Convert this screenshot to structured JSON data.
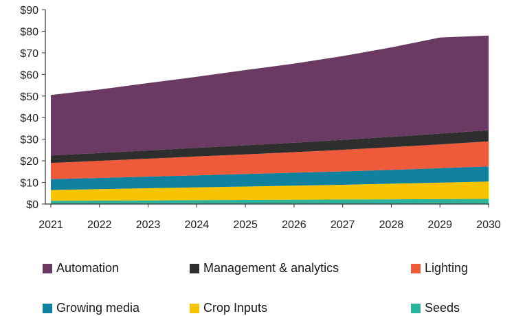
{
  "chart_data": {
    "type": "area",
    "stacked": true,
    "title": "",
    "xlabel": "",
    "ylabel": "",
    "x": [
      2021,
      2022,
      2023,
      2024,
      2025,
      2026,
      2027,
      2028,
      2029,
      2030
    ],
    "ylim": [
      0,
      90
    ],
    "yticks": [
      "$0",
      "$10",
      "$20",
      "$30",
      "$40",
      "$50",
      "$60",
      "$70",
      "$80",
      "$90"
    ],
    "grid": false,
    "legend_position": "bottom",
    "series": [
      {
        "name": "Seeds",
        "color": "#2bb39b",
        "values": [
          1.5,
          1.6,
          1.7,
          1.8,
          1.9,
          2.0,
          2.1,
          2.2,
          2.3,
          2.4
        ]
      },
      {
        "name": "Crop Inputs",
        "color": "#f6c400",
        "values": [
          5.0,
          5.3,
          5.6,
          5.9,
          6.2,
          6.5,
          6.8,
          7.2,
          7.6,
          8.0
        ]
      },
      {
        "name": "Growing media",
        "color": "#10819f",
        "values": [
          5.0,
          5.2,
          5.4,
          5.6,
          5.8,
          6.0,
          6.2,
          6.4,
          6.7,
          7.0
        ]
      },
      {
        "name": "Lighting",
        "color": "#ef5a3a",
        "values": [
          7.5,
          7.9,
          8.3,
          8.7,
          9.1,
          9.5,
          10.0,
          10.5,
          11.0,
          11.6
        ]
      },
      {
        "name": "Management & analytics",
        "color": "#2e2e2e",
        "values": [
          3.5,
          3.6,
          3.8,
          4.0,
          4.2,
          4.4,
          4.6,
          4.8,
          5.0,
          5.2
        ]
      },
      {
        "name": "Automation",
        "color": "#6b3a63",
        "values": [
          28.0,
          29.4,
          31.2,
          32.9,
          34.8,
          36.6,
          38.8,
          41.4,
          44.5,
          43.8
        ]
      }
    ]
  },
  "legend": {
    "order": [
      "Automation",
      "Management & analytics",
      "Lighting",
      "Growing media",
      "Crop Inputs",
      "Seeds"
    ]
  }
}
